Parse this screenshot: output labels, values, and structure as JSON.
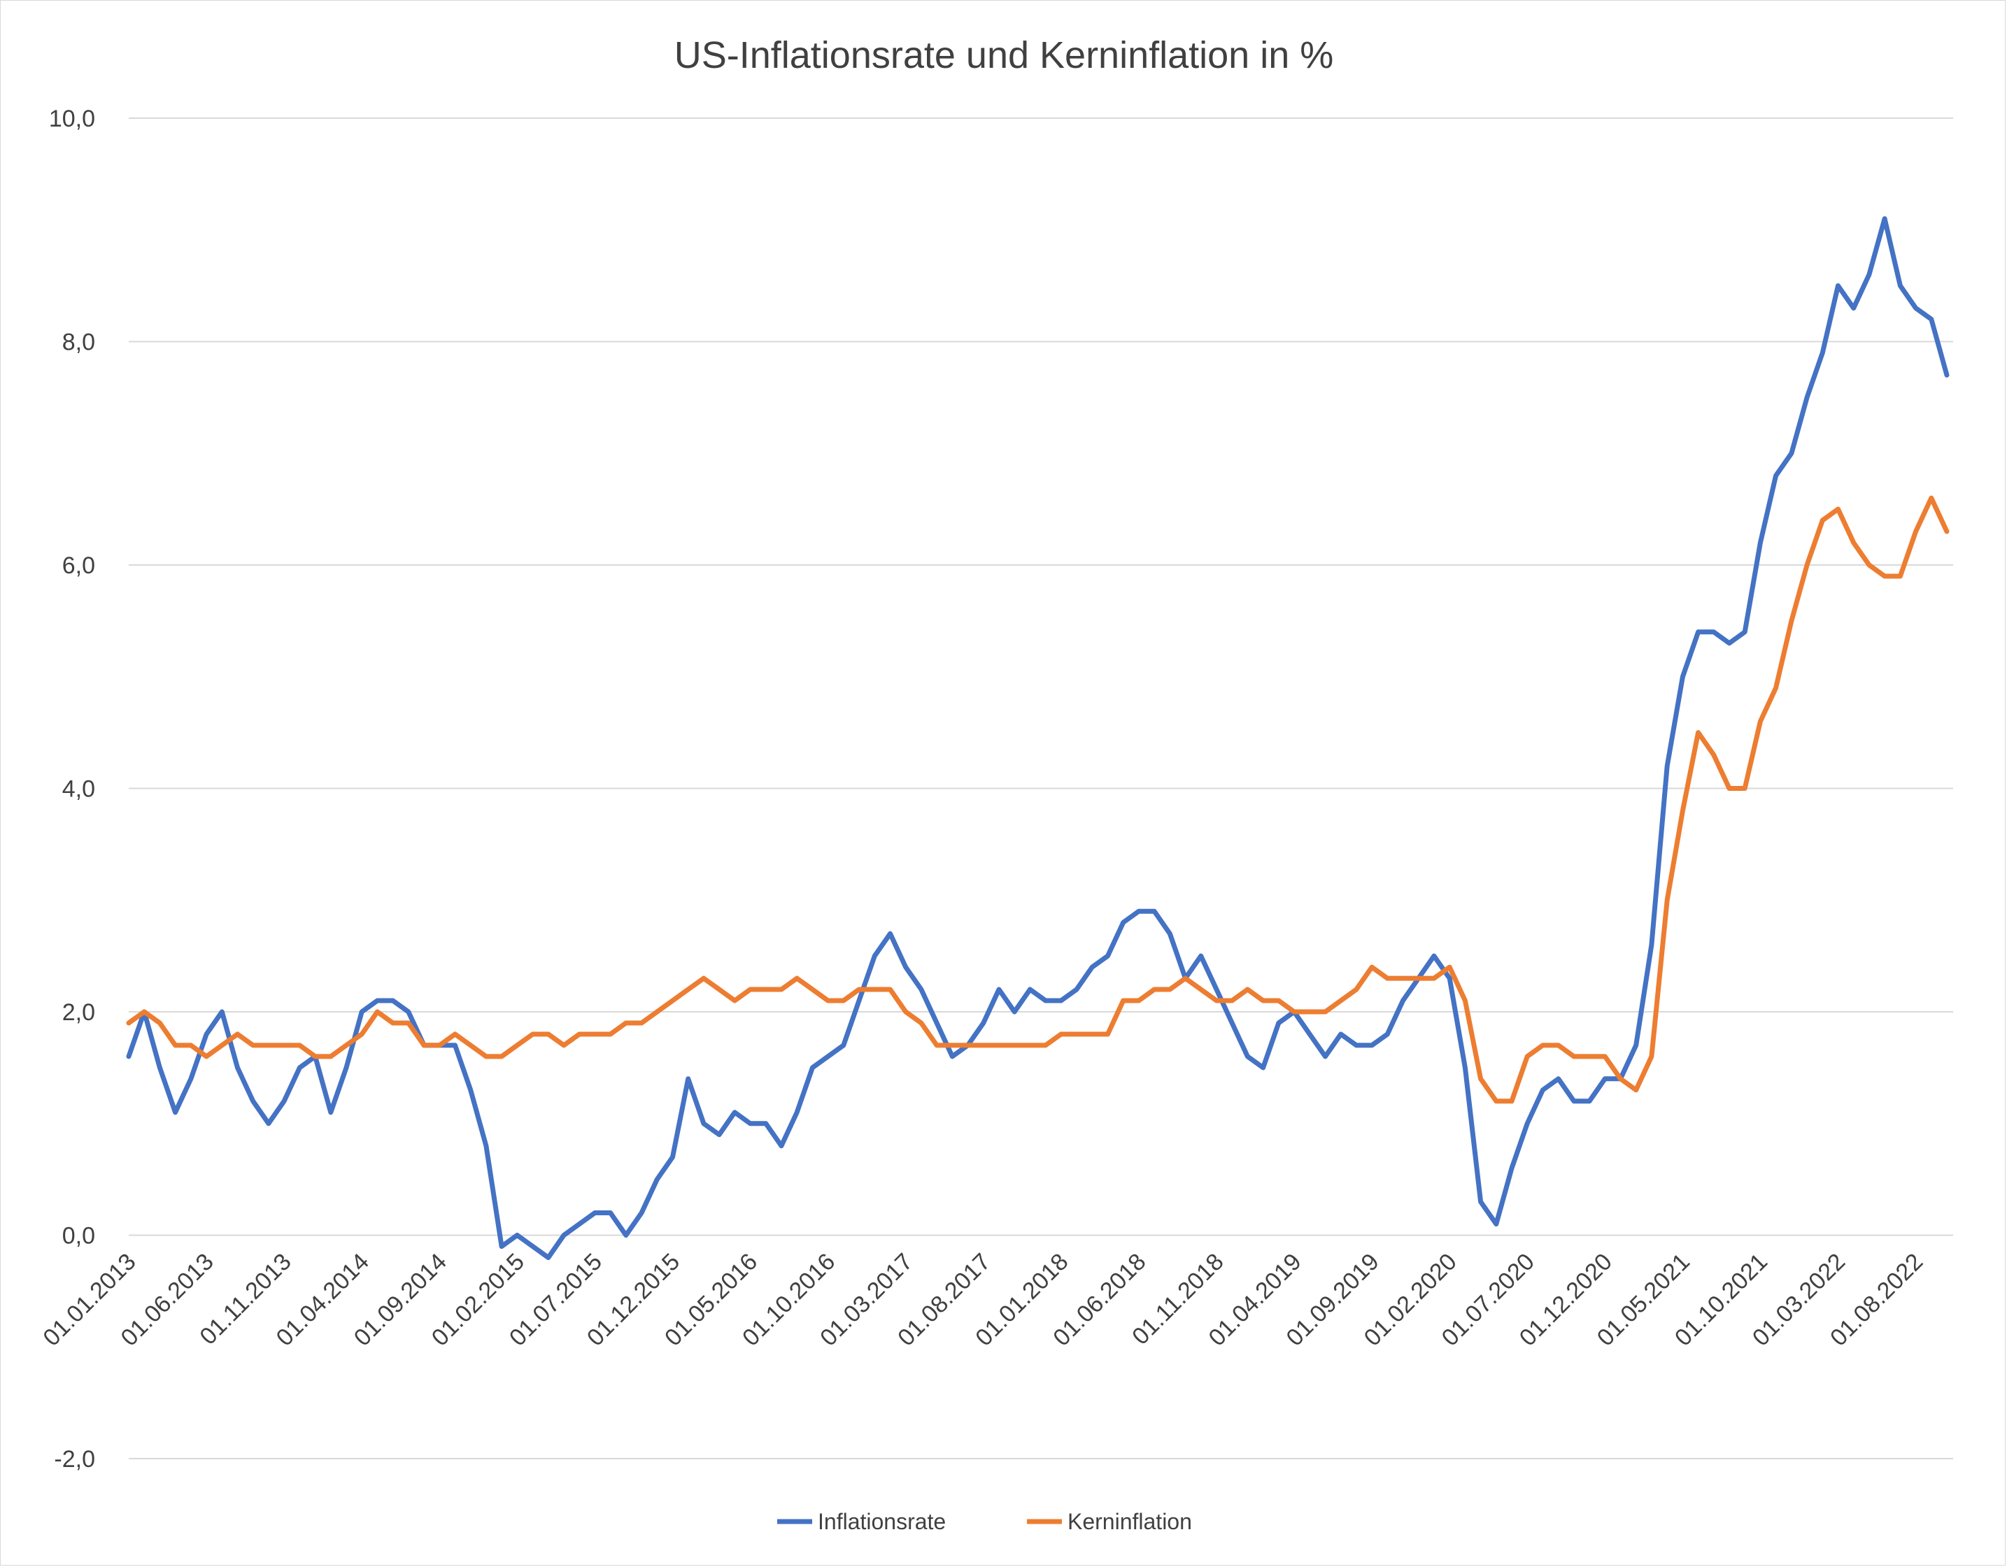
{
  "chart_data": {
    "type": "line",
    "title": "US-Inflationsrate und Kerninflation in %",
    "xlabel": "",
    "ylabel": "",
    "ylim": [
      -2,
      10
    ],
    "yticks": [
      -2,
      0,
      2,
      4,
      6,
      8,
      10
    ],
    "ytick_labels": [
      "-2,0",
      "0,0",
      "2,0",
      "4,0",
      "6,0",
      "8,0",
      "10,0"
    ],
    "grid": true,
    "legend_position": "bottom",
    "x_start": "01.01.2013",
    "x_tick_labels": [
      "01.01.2013",
      "01.06.2013",
      "01.11.2013",
      "01.04.2014",
      "01.09.2014",
      "01.02.2015",
      "01.07.2015",
      "01.12.2015",
      "01.05.2016",
      "01.10.2016",
      "01.03.2017",
      "01.08.2017",
      "01.01.2018",
      "01.06.2018",
      "01.11.2018",
      "01.04.2019",
      "01.09.2019",
      "01.02.2020",
      "01.07.2020",
      "01.12.2020",
      "01.05.2021",
      "01.10.2021",
      "01.03.2022",
      "01.08.2022"
    ],
    "series": [
      {
        "name": "Inflationsrate",
        "color": "#4472C4",
        "values": [
          1.6,
          2.0,
          1.5,
          1.1,
          1.4,
          1.8,
          2.0,
          1.5,
          1.2,
          1.0,
          1.2,
          1.5,
          1.6,
          1.1,
          1.5,
          2.0,
          2.1,
          2.1,
          2.0,
          1.7,
          1.7,
          1.7,
          1.3,
          0.8,
          -0.1,
          0.0,
          -0.1,
          -0.2,
          0.0,
          0.1,
          0.2,
          0.2,
          0.0,
          0.2,
          0.5,
          0.7,
          1.4,
          1.0,
          0.9,
          1.1,
          1.0,
          1.0,
          0.8,
          1.1,
          1.5,
          1.6,
          1.7,
          2.1,
          2.5,
          2.7,
          2.4,
          2.2,
          1.9,
          1.6,
          1.7,
          1.9,
          2.2,
          2.0,
          2.2,
          2.1,
          2.1,
          2.2,
          2.4,
          2.5,
          2.8,
          2.9,
          2.9,
          2.7,
          2.3,
          2.5,
          2.2,
          1.9,
          1.6,
          1.5,
          1.9,
          2.0,
          1.8,
          1.6,
          1.8,
          1.7,
          1.7,
          1.8,
          2.1,
          2.3,
          2.5,
          2.3,
          1.5,
          0.3,
          0.1,
          0.6,
          1.0,
          1.3,
          1.4,
          1.2,
          1.2,
          1.4,
          1.4,
          1.7,
          2.6,
          4.2,
          5.0,
          5.4,
          5.4,
          5.3,
          5.4,
          6.2,
          6.8,
          7.0,
          7.5,
          7.9,
          8.5,
          8.3,
          8.6,
          9.1,
          8.5,
          8.3,
          8.2,
          7.7
        ]
      },
      {
        "name": "Kerninflation",
        "color": "#ED7D31",
        "values": [
          1.9,
          2.0,
          1.9,
          1.7,
          1.7,
          1.6,
          1.7,
          1.8,
          1.7,
          1.7,
          1.7,
          1.7,
          1.6,
          1.6,
          1.7,
          1.8,
          2.0,
          1.9,
          1.9,
          1.7,
          1.7,
          1.8,
          1.7,
          1.6,
          1.6,
          1.7,
          1.8,
          1.8,
          1.7,
          1.8,
          1.8,
          1.8,
          1.9,
          1.9,
          2.0,
          2.1,
          2.2,
          2.3,
          2.2,
          2.1,
          2.2,
          2.2,
          2.2,
          2.3,
          2.2,
          2.1,
          2.1,
          2.2,
          2.2,
          2.2,
          2.0,
          1.9,
          1.7,
          1.7,
          1.7,
          1.7,
          1.7,
          1.7,
          1.7,
          1.7,
          1.8,
          1.8,
          1.8,
          1.8,
          2.1,
          2.1,
          2.2,
          2.2,
          2.3,
          2.2,
          2.1,
          2.1,
          2.2,
          2.1,
          2.1,
          2.0,
          2.0,
          2.0,
          2.1,
          2.2,
          2.4,
          2.3,
          2.3,
          2.3,
          2.3,
          2.4,
          2.1,
          1.4,
          1.2,
          1.2,
          1.6,
          1.7,
          1.7,
          1.6,
          1.6,
          1.6,
          1.4,
          1.3,
          1.6,
          3.0,
          3.8,
          4.5,
          4.3,
          4.0,
          4.0,
          4.6,
          4.9,
          5.5,
          6.0,
          6.4,
          6.5,
          6.2,
          6.0,
          5.9,
          5.9,
          6.3,
          6.6,
          6.3
        ]
      }
    ]
  }
}
